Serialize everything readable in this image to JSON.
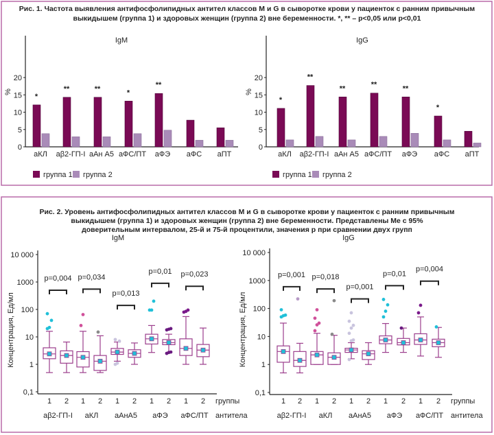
{
  "colors": {
    "frame": "#b86aa8",
    "group1": "#7a0a55",
    "group2": "#a98bb8",
    "box": "#9b3d8c",
    "mean": "#20c0d8"
  },
  "chart_data": [
    {
      "type": "bar",
      "title_lines": [
        "Рис. 1. Частота выявления антифосфолипидных антител классов M и G в сыворотке крови у пациенток с ранним привычным",
        "выкидышем (группа 1) и здоровых женщин (группа 2) вне беременности. *, ** – p<0,05 или p<0,01"
      ],
      "panels": [
        {
          "title": "IgM",
          "ylabel": "%",
          "ylim": [
            0,
            20
          ],
          "yticks": [
            "0",
            "5",
            "10",
            "15",
            "20"
          ],
          "categories": [
            "аКЛ",
            "аβ2-ГП-I",
            "аАн А5",
            "аФС/ПТ",
            "аФЭ",
            "аФС",
            "аПТ"
          ],
          "series": [
            {
              "name": "группа 1",
              "values": [
                12.1,
                14.3,
                14.3,
                13.2,
                15.4,
                7.7,
                5.5
              ]
            },
            {
              "name": "группа 2",
              "values": [
                3.8,
                2.9,
                2.9,
                3.8,
                4.8,
                1.9,
                1.9
              ]
            }
          ],
          "significance": [
            "*",
            "**",
            "**",
            "*",
            "**",
            "",
            ""
          ]
        },
        {
          "title": "IgG",
          "ylabel": "%",
          "ylim": [
            0,
            20
          ],
          "yticks": [
            "0",
            "5",
            "10",
            "15",
            "20"
          ],
          "categories": [
            "аКЛ",
            "аβ2-ГП-I",
            "аАн А5",
            "аФС/ПТ",
            "аФЭ",
            "аФС",
            "аПТ"
          ],
          "series": [
            {
              "name": "группа 1",
              "values": [
                11.1,
                17.7,
                14.4,
                15.5,
                14.4,
                8.9,
                4.5
              ]
            },
            {
              "name": "группа 2",
              "values": [
                2,
                3,
                2,
                3,
                3.9,
                2,
                1.1
              ]
            }
          ],
          "significance": [
            "*",
            "**",
            "**",
            "**",
            "**",
            "*",
            ""
          ]
        }
      ]
    },
    {
      "type": "box",
      "title_lines": [
        "Рис. 2. Уровень антифосфолипидных антител классов M и G в сыворотке крови у пациенток с ранним привычным",
        "выкидышем (группа 1) и здоровых женщин (группа 2) вне беременности. Представлены Me с 95%",
        "доверительным интервалом, 25-й и 75-й процентили, значения p при сравнении двух групп"
      ],
      "ylabel": "Концентрация, Ед/мл",
      "yscale": "log",
      "yticks": [
        "0,1",
        "1",
        "10",
        "100",
        "1000",
        "10 000"
      ],
      "group_label": "группы",
      "antibody_label": "антитела",
      "groups": [
        "1",
        "2"
      ],
      "panels": [
        {
          "title": "IgM",
          "antibodies": [
            "аβ2-ГП-I",
            "аКЛ",
            "аАнА5",
            "аФЭ",
            "аФС/ПТ"
          ],
          "p_values": [
            "p=0,004",
            "p=0,034",
            "p=0,013",
            "p=0,01",
            "p=0,023"
          ],
          "bracket_level": [
            500,
            550,
            140,
            900,
            700
          ],
          "boxes": [
            {
              "q1": 1.6,
              "med": 2.4,
              "q3": 4,
              "lo": 0.5,
              "hi": 16,
              "out": [
                20,
                22,
                40,
                70
              ]
            },
            {
              "q1": 1.1,
              "med": 2.1,
              "q3": 3.1,
              "lo": 0.5,
              "hi": 6.5,
              "out": []
            },
            {
              "q1": 0.8,
              "med": 1.8,
              "q3": 2.9,
              "lo": 0.5,
              "hi": 16,
              "out": [
                26,
                65
              ]
            },
            {
              "q1": 0.6,
              "med": 1.3,
              "q3": 2.1,
              "lo": 0.5,
              "hi": 11,
              "out": [
                15
              ]
            },
            {
              "q1": 2.3,
              "med": 2.8,
              "q3": 3.8,
              "lo": 1.3,
              "hi": 6.5,
              "out": [
                1,
                1.1,
                7,
                8
              ]
            },
            {
              "q1": 1.8,
              "med": 2.5,
              "q3": 3.4,
              "lo": 1,
              "hi": 6,
              "out": []
            },
            {
              "q1": 5.5,
              "med": 8.5,
              "q3": 12.5,
              "lo": 2.7,
              "hi": 26,
              "out": [
                95,
                95,
                200
              ]
            },
            {
              "q1": 5.2,
              "med": 6.2,
              "q3": 8,
              "lo": 2.7,
              "hi": 12.5,
              "out": [
                2.5,
                2.7,
                2.8,
                18,
                19,
                20
              ]
            },
            {
              "q1": 2.1,
              "med": 3.8,
              "q3": 8.5,
              "lo": 1,
              "hi": 55,
              "out": [
                80,
                85,
                95
              ]
            },
            {
              "q1": 1.9,
              "med": 3.3,
              "q3": 5.3,
              "lo": 1,
              "hi": 21,
              "out": []
            }
          ]
        },
        {
          "title": "IgG",
          "antibodies": [
            "аβ2-ГП-I",
            "аКЛ",
            "аАнА5",
            "аФЭ",
            "аФС/ПТ"
          ],
          "p_values": [
            "p=0,001",
            "p=0,018",
            "p=0,001",
            "p=0,01",
            "p=0,004"
          ],
          "bracket_level": [
            600,
            500,
            220,
            650,
            950
          ],
          "boxes": [
            {
              "q1": 1.2,
              "med": 2.9,
              "q3": 4.6,
              "lo": 0.5,
              "hi": 30,
              "out": [
                50,
                55,
                58,
                90
              ]
            },
            {
              "q1": 0.85,
              "med": 1.4,
              "q3": 2.9,
              "lo": 0.5,
              "hi": 5.7,
              "out": [
                220
              ]
            },
            {
              "q1": 1,
              "med": 2.2,
              "q3": 2.9,
              "lo": 1,
              "hi": 13,
              "out": [
                16,
                26,
                30,
                45,
                90
              ]
            },
            {
              "q1": 1,
              "med": 1.8,
              "q3": 2.6,
              "lo": 1,
              "hi": 11,
              "out": [
                12,
                190
              ]
            },
            {
              "q1": 2.7,
              "med": 3.3,
              "q3": 3.8,
              "lo": 1.6,
              "hi": 6,
              "out": [
                1.5,
                7,
                7.5,
                13,
                20,
                25,
                35,
                70
              ]
            },
            {
              "q1": 1.5,
              "med": 2.4,
              "q3": 3.1,
              "lo": 1,
              "hi": 6,
              "out": []
            },
            {
              "q1": 5.5,
              "med": 7.5,
              "q3": 10.5,
              "lo": 2.7,
              "hi": 29,
              "out": [
                50,
                80,
                135,
                210
              ]
            },
            {
              "q1": 5,
              "med": 6,
              "q3": 8.5,
              "lo": 2.7,
              "hi": 20,
              "out": [
                20
              ]
            },
            {
              "q1": 5.2,
              "med": 7.5,
              "q3": 12.5,
              "lo": 2,
              "hi": 50,
              "out": [
                70,
                130
              ]
            },
            {
              "q1": 4.3,
              "med": 6,
              "q3": 8,
              "lo": 1.8,
              "hi": 21,
              "out": [
                22
              ]
            }
          ]
        }
      ]
    }
  ]
}
